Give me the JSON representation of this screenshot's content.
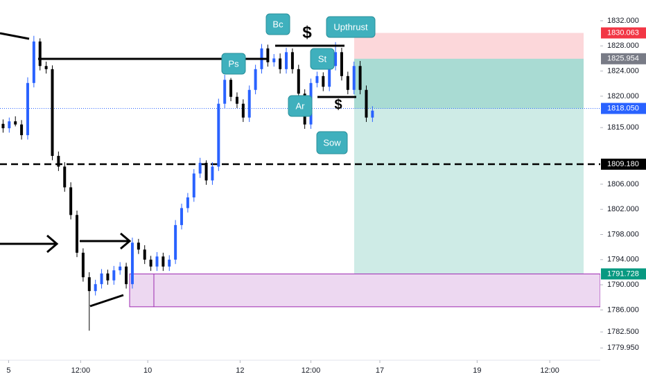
{
  "chart_data": {
    "type": "candlestick",
    "up_color": "#2962ff",
    "down_color": "#000000",
    "open": [
      1815.6,
      1814.9,
      1816.0,
      1815.5,
      1813.8,
      1822.1,
      1828.7,
      1824.8,
      1824.3,
      1810.5,
      1808.8,
      1805.5,
      1801.1,
      1795.1,
      1791.2,
      1789.0,
      1790.1,
      1791.8,
      1790.7,
      1792.3,
      1792.9,
      1790.1,
      1796.7,
      1795.6,
      1794.0,
      1792.9,
      1794.5,
      1792.9,
      1794.0,
      1799.5,
      1802.2,
      1803.9,
      1807.7,
      1809.4,
      1806.6,
      1808.8,
      1818.8,
      1822.6,
      1819.9,
      1818.8,
      1816.6,
      1821.0,
      1824.3,
      1827.6,
      1825.4,
      1826.0,
      1824.3,
      1827.0,
      1824.3,
      1820.4,
      1815.5,
      1822.1,
      1823.2,
      1821.5,
      1824.8,
      1827.0,
      1823.2,
      1821.0,
      1824.8,
      1821.0,
      1816.6
    ],
    "close": [
      1814.9,
      1816.0,
      1815.5,
      1813.8,
      1822.1,
      1828.7,
      1824.8,
      1824.3,
      1810.5,
      1808.8,
      1805.5,
      1801.1,
      1795.1,
      1791.2,
      1789.0,
      1790.1,
      1791.8,
      1790.7,
      1792.3,
      1792.9,
      1790.1,
      1796.7,
      1795.6,
      1794.0,
      1792.9,
      1794.5,
      1792.9,
      1794.0,
      1799.5,
      1802.2,
      1803.9,
      1807.7,
      1809.4,
      1806.6,
      1808.8,
      1818.8,
      1822.6,
      1819.9,
      1818.8,
      1816.6,
      1821.0,
      1824.3,
      1827.6,
      1825.4,
      1826.0,
      1824.3,
      1827.0,
      1824.3,
      1820.4,
      1815.5,
      1822.1,
      1823.2,
      1821.5,
      1824.8,
      1827.0,
      1823.2,
      1821.0,
      1824.8,
      1821.0,
      1816.6,
      1817.7
    ],
    "high": [
      1816.3,
      1816.6,
      1816.8,
      1816.2,
      1823.0,
      1829.6,
      1829.2,
      1825.5,
      1824.9,
      1811.2,
      1809.5,
      1806.3,
      1801.8,
      1795.8,
      1792.0,
      1790.8,
      1792.5,
      1792.4,
      1793.0,
      1793.6,
      1793.5,
      1797.5,
      1797.3,
      1796.3,
      1794.6,
      1795.2,
      1795.1,
      1794.7,
      1800.3,
      1802.9,
      1804.6,
      1808.4,
      1810.2,
      1809.8,
      1809.5,
      1819.6,
      1823.4,
      1822.9,
      1820.6,
      1819.5,
      1821.7,
      1825.0,
      1828.3,
      1828.2,
      1826.7,
      1826.8,
      1827.7,
      1827.6,
      1825.0,
      1821.1,
      1822.8,
      1823.9,
      1823.8,
      1825.5,
      1828.6,
      1827.7,
      1823.9,
      1825.5,
      1825.6,
      1821.7,
      1818.4
    ],
    "low": [
      1814.2,
      1814.2,
      1815.2,
      1813.1,
      1813.1,
      1821.4,
      1824.1,
      1823.6,
      1809.8,
      1808.1,
      1804.8,
      1800.4,
      1794.4,
      1790.5,
      1782.7,
      1788.3,
      1789.4,
      1790.0,
      1790.0,
      1791.6,
      1789.4,
      1789.4,
      1794.9,
      1793.3,
      1792.2,
      1792.2,
      1792.2,
      1792.2,
      1793.3,
      1798.8,
      1801.5,
      1803.2,
      1807.0,
      1805.9,
      1805.9,
      1808.1,
      1818.1,
      1819.2,
      1818.1,
      1815.9,
      1815.9,
      1820.3,
      1823.6,
      1824.7,
      1824.7,
      1823.6,
      1823.6,
      1823.6,
      1819.7,
      1814.8,
      1814.8,
      1821.4,
      1820.8,
      1820.8,
      1824.1,
      1822.5,
      1820.3,
      1820.3,
      1820.3,
      1815.9,
      1815.9
    ],
    "xlim": [
      -0.5,
      97
    ],
    "ylim": [
      1778,
      1835.3
    ],
    "xticks": [
      {
        "value": 0.9,
        "label": "5"
      },
      {
        "value": 12.6,
        "label": "12:00"
      },
      {
        "value": 23.5,
        "label": "10"
      },
      {
        "value": 38.5,
        "label": "12"
      },
      {
        "value": 50,
        "label": "12:00"
      },
      {
        "value": 61.2,
        "label": "17"
      },
      {
        "value": 77,
        "label": "19"
      },
      {
        "value": 88.8,
        "label": "12:00"
      }
    ],
    "yticks": [
      {
        "value": 1832,
        "label": "1832.000"
      },
      {
        "value": 1828,
        "label": "1828.000"
      },
      {
        "value": 1824,
        "label": "1824.000"
      },
      {
        "value": 1820,
        "label": "1820.000"
      },
      {
        "value": 1815,
        "label": "1815.000"
      },
      {
        "value": 1806,
        "label": "1806.000"
      },
      {
        "value": 1802,
        "label": "1802.000"
      },
      {
        "value": 1798,
        "label": "1798.000"
      },
      {
        "value": 1794,
        "label": "1794.000"
      },
      {
        "value": 1790,
        "label": "1790.000"
      },
      {
        "value": 1786,
        "label": "1786.000"
      },
      {
        "value": 1782.5,
        "label": "1782.500"
      },
      {
        "value": 1779.95,
        "label": "1779.950"
      }
    ],
    "price_labels": [
      {
        "value": 1830.063,
        "label": "1830.063",
        "color": "#f23645"
      },
      {
        "value": 1825.954,
        "label": "1825.954",
        "color": "#787b86"
      },
      {
        "value": 1818.05,
        "label": "1818.050",
        "color": "#2962ff"
      },
      {
        "value": 1809.18,
        "label": "1809.180",
        "color": "#000000"
      },
      {
        "value": 1791.728,
        "label": "1791.728",
        "color": "#089981"
      }
    ],
    "demand_zone_low": 1786.5,
    "annotations": [
      "Bc",
      "Upthrust",
      "Ps",
      "St",
      "Ar",
      "Sow",
      "$",
      "$"
    ]
  }
}
